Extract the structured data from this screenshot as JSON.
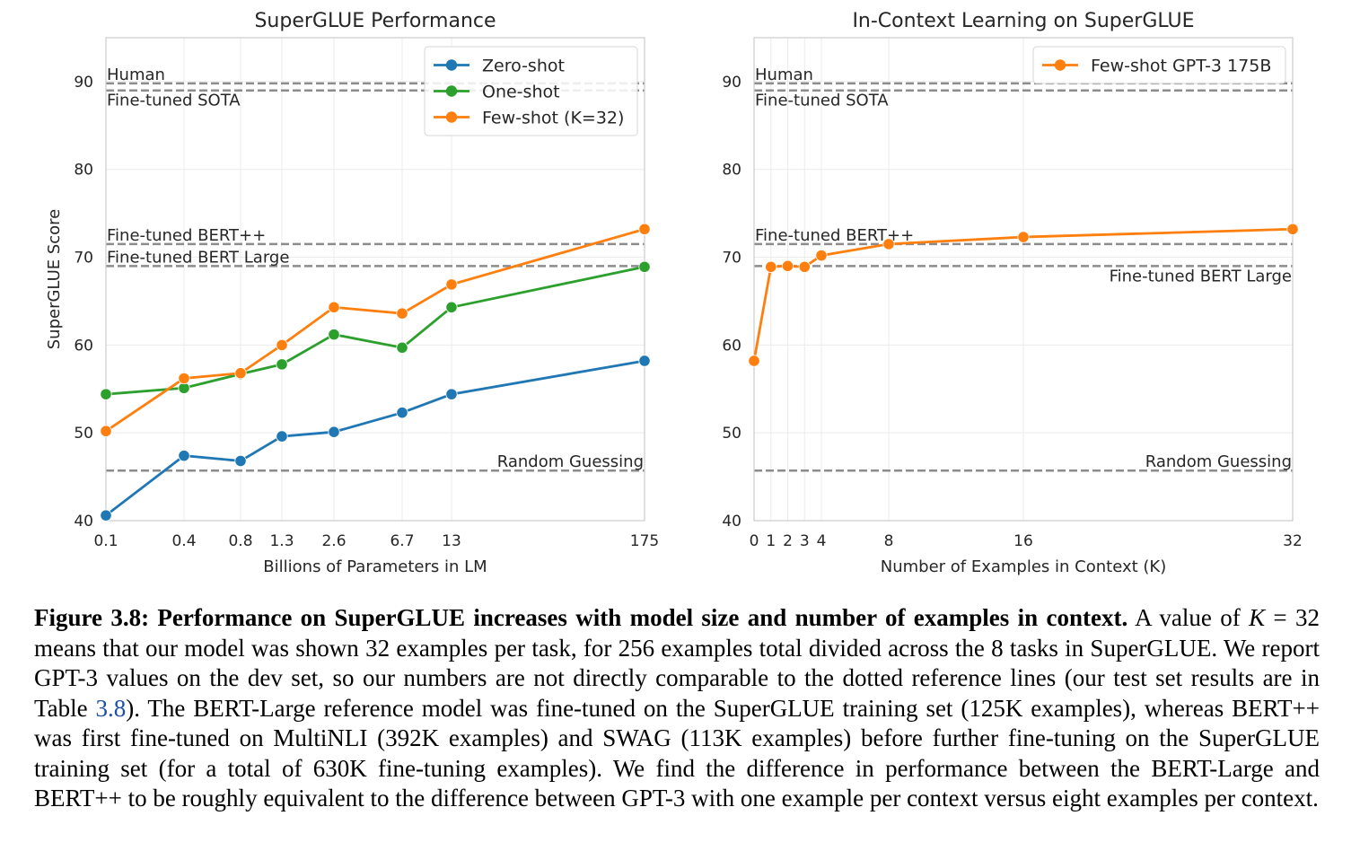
{
  "chart_data": [
    {
      "type": "line",
      "title": "SuperGLUE Performance",
      "xlabel": "Billions of Parameters in LM",
      "ylabel": "SuperGLUE Score",
      "ylim": [
        40,
        95
      ],
      "yticks": [
        40,
        50,
        60,
        70,
        80,
        90
      ],
      "categories": [
        "0.1",
        "0.4",
        "0.8",
        "1.3",
        "2.6",
        "6.7",
        "13",
        "175"
      ],
      "series": [
        {
          "name": "Zero-shot",
          "color": "#1f77b4",
          "values": [
            40.6,
            47.4,
            46.8,
            49.6,
            50.1,
            52.3,
            54.4,
            58.2
          ]
        },
        {
          "name": "One-shot",
          "color": "#2ca02c",
          "values": [
            54.4,
            55.1,
            56.7,
            57.8,
            61.2,
            59.7,
            64.3,
            68.9
          ]
        },
        {
          "name": "Few-shot (K=32)",
          "color": "#ff7f0e",
          "values": [
            50.2,
            56.2,
            56.8,
            60.0,
            64.3,
            63.6,
            66.9,
            73.2
          ]
        }
      ],
      "references": [
        {
          "label": "Human",
          "value": 89.8,
          "label_side": "left",
          "label_pos": "above"
        },
        {
          "label": "Fine-tuned SOTA",
          "value": 89.0,
          "label_side": "left",
          "label_pos": "below"
        },
        {
          "label": "Fine-tuned BERT++",
          "value": 71.5,
          "label_side": "left",
          "label_pos": "above"
        },
        {
          "label": "Fine-tuned BERT Large",
          "value": 69.0,
          "label_side": "left",
          "label_pos": "above"
        },
        {
          "label": "Random Guessing",
          "value": 45.7,
          "label_side": "right",
          "label_pos": "above"
        }
      ],
      "legend": "top-right",
      "grid": true
    },
    {
      "type": "line",
      "title": "In-Context Learning on SuperGLUE",
      "xlabel": "Number of Examples in Context (K)",
      "ylabel": "",
      "ylim": [
        40,
        95
      ],
      "yticks": [
        40,
        50,
        60,
        70,
        80,
        90
      ],
      "xlim": [
        0,
        32
      ],
      "xticks": [
        0,
        1,
        2,
        3,
        4,
        8,
        16,
        32
      ],
      "series": [
        {
          "name": "Few-shot GPT-3 175B",
          "color": "#ff7f0e",
          "x": [
            0,
            1,
            2,
            3,
            4,
            8,
            16,
            32
          ],
          "values": [
            58.2,
            68.9,
            69.0,
            68.9,
            70.2,
            71.5,
            72.3,
            73.2
          ]
        }
      ],
      "references": [
        {
          "label": "Human",
          "value": 89.8,
          "label_side": "left",
          "label_pos": "above"
        },
        {
          "label": "Fine-tuned SOTA",
          "value": 89.0,
          "label_side": "left",
          "label_pos": "below"
        },
        {
          "label": "Fine-tuned BERT++",
          "value": 71.5,
          "label_side": "left",
          "label_pos": "above"
        },
        {
          "label": "Fine-tuned BERT Large",
          "value": 69.0,
          "label_side": "right",
          "label_pos": "below"
        },
        {
          "label": "Random Guessing",
          "value": 45.7,
          "label_side": "right",
          "label_pos": "above"
        }
      ],
      "legend": "top-right",
      "grid": true
    }
  ],
  "caption": {
    "label": "Figure 3.8:",
    "bold_title": "Performance on SuperGLUE increases with model size and number of examples in context.",
    "text_1": " A value of ",
    "k_var": "K",
    "text_2": " = 32 means that our model was shown 32 examples per task, for 256 examples total divided across the 8 tasks in SuperGLUE. We report GPT-3 values on the dev set, so our numbers are not directly comparable to the dotted reference lines (our test set results are in Table ",
    "table_ref": "3.8",
    "text_3": "). The BERT-Large reference model was fine-tuned on the SuperGLUE training set (125K examples), whereas BERT++ was first fine-tuned on MultiNLI (392K examples) and SWAG (113K examples) before further fine-tuning on the SuperGLUE training set (for a total of 630K fine-tuning examples). We find the difference in performance between the BERT-Large and BERT++ to be roughly equivalent to the difference between GPT-3 with one example per context versus eight examples per context."
  }
}
